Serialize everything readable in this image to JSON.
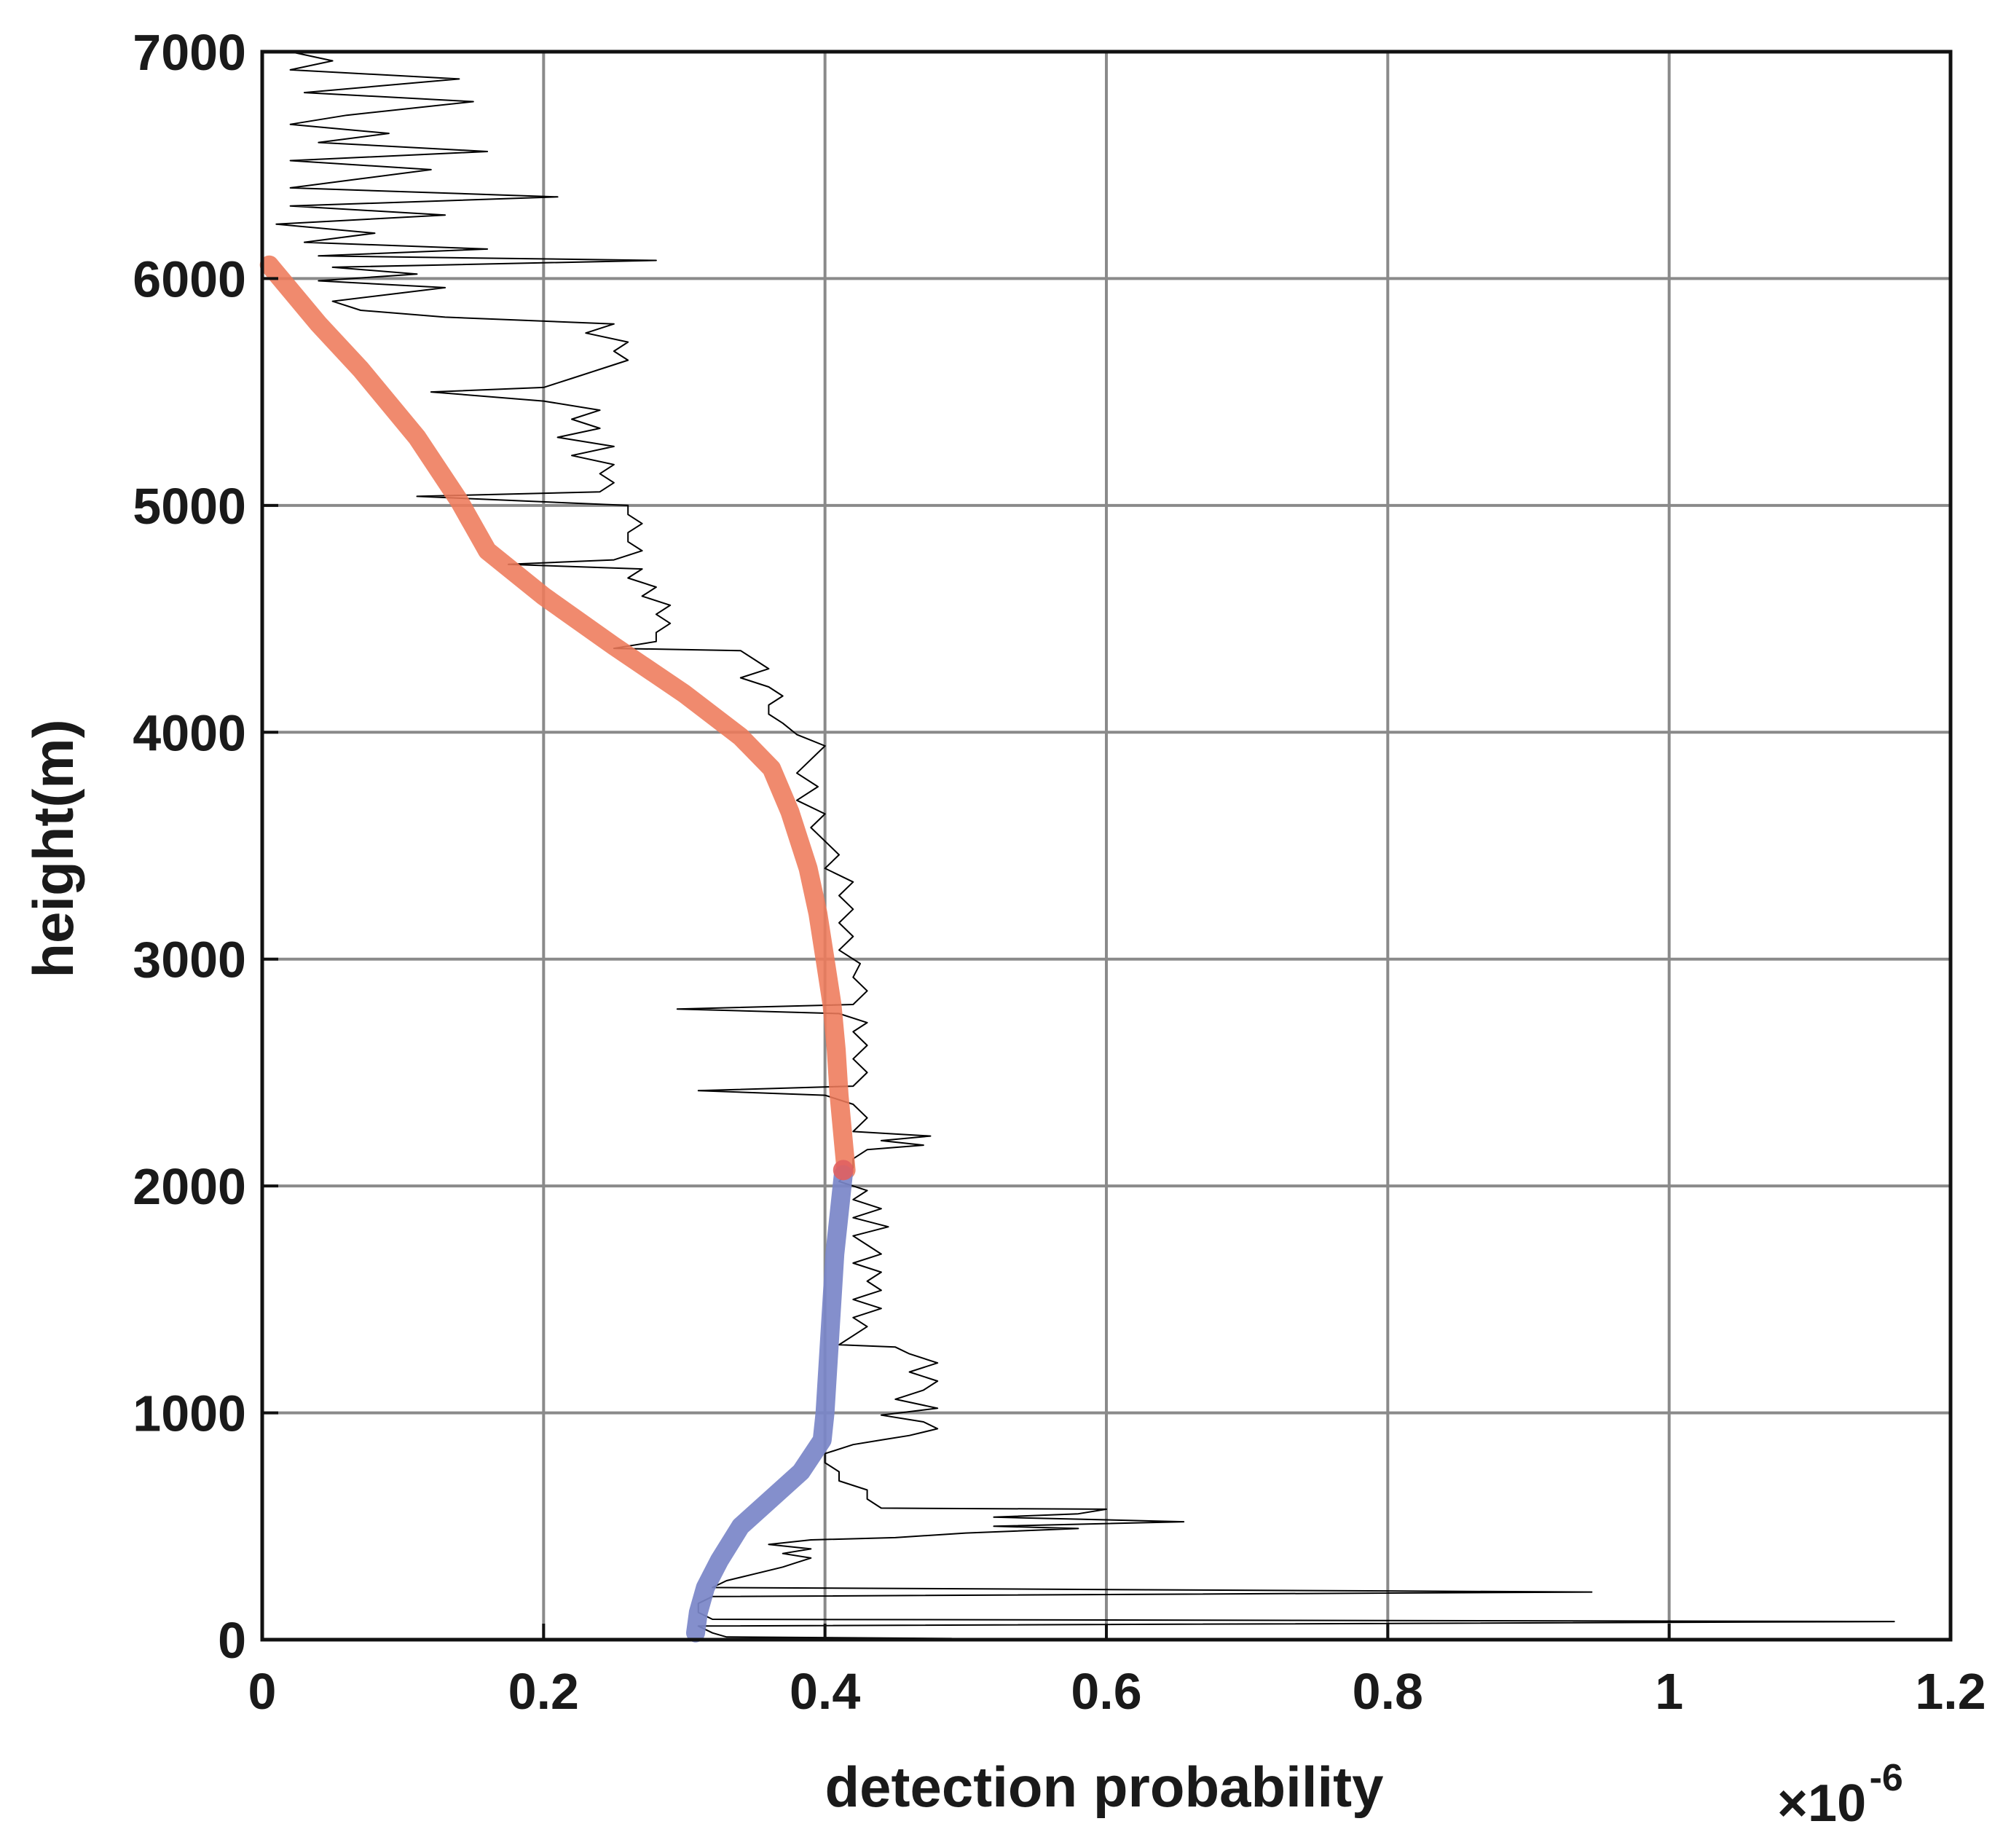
{
  "chart_data": {
    "type": "line",
    "title": "",
    "xlabel": "detection probability",
    "ylabel": "height(m)",
    "x_exponent_label": {
      "times": "×10",
      "power": "-6"
    },
    "xlim": [
      0,
      1.2
    ],
    "ylim": [
      0,
      7000
    ],
    "grid": true,
    "xticks": [
      0,
      0.2,
      0.4,
      0.6,
      0.8,
      1,
      1.2
    ],
    "xtick_labels": [
      "0",
      "0.2",
      "0.4",
      "0.6",
      "0.8",
      "1",
      "1.2"
    ],
    "yticks": [
      0,
      1000,
      2000,
      3000,
      4000,
      5000,
      6000,
      7000
    ],
    "ytick_labels": [
      "0",
      "1000",
      "2000",
      "3000",
      "4000",
      "5000",
      "6000",
      "7000"
    ],
    "series": [
      {
        "color": "#000000",
        "width": 2,
        "opacity": 1,
        "points": [
          [
            0.3,
            0
          ],
          [
            0.49,
            5
          ],
          [
            0.33,
            12
          ],
          [
            0.32,
            30
          ],
          [
            0.31,
            60
          ],
          [
            1.16,
            80
          ],
          [
            0.32,
            90
          ],
          [
            0.31,
            120
          ],
          [
            0.31,
            160
          ],
          [
            0.32,
            190
          ],
          [
            0.945,
            210
          ],
          [
            0.32,
            230
          ],
          [
            0.33,
            260
          ],
          [
            0.35,
            290
          ],
          [
            0.37,
            320
          ],
          [
            0.38,
            340
          ],
          [
            0.39,
            360
          ],
          [
            0.37,
            380
          ],
          [
            0.39,
            400
          ],
          [
            0.36,
            420
          ],
          [
            0.39,
            440
          ],
          [
            0.45,
            450
          ],
          [
            0.5,
            470
          ],
          [
            0.58,
            490
          ],
          [
            0.52,
            500
          ],
          [
            0.655,
            520
          ],
          [
            0.52,
            540
          ],
          [
            0.58,
            555
          ],
          [
            0.6,
            575
          ],
          [
            0.44,
            580
          ],
          [
            0.43,
            620
          ],
          [
            0.43,
            660
          ],
          [
            0.41,
            700
          ],
          [
            0.41,
            740
          ],
          [
            0.4,
            780
          ],
          [
            0.4,
            820
          ],
          [
            0.42,
            860
          ],
          [
            0.44,
            880
          ],
          [
            0.46,
            900
          ],
          [
            0.48,
            930
          ],
          [
            0.47,
            960
          ],
          [
            0.44,
            990
          ],
          [
            0.48,
            1020
          ],
          [
            0.45,
            1060
          ],
          [
            0.47,
            1100
          ],
          [
            0.48,
            1140
          ],
          [
            0.46,
            1180
          ],
          [
            0.48,
            1220
          ],
          [
            0.46,
            1260
          ],
          [
            0.45,
            1290
          ],
          [
            0.41,
            1300
          ],
          [
            0.42,
            1340
          ],
          [
            0.43,
            1380
          ],
          [
            0.42,
            1420
          ],
          [
            0.44,
            1460
          ],
          [
            0.42,
            1500
          ],
          [
            0.44,
            1540
          ],
          [
            0.43,
            1580
          ],
          [
            0.44,
            1620
          ],
          [
            0.42,
            1660
          ],
          [
            0.44,
            1700
          ],
          [
            0.43,
            1740
          ],
          [
            0.42,
            1780
          ],
          [
            0.445,
            1820
          ],
          [
            0.42,
            1860
          ],
          [
            0.44,
            1900
          ],
          [
            0.42,
            1940
          ],
          [
            0.43,
            1980
          ],
          [
            0.41,
            2020
          ],
          [
            0.42,
            2080
          ],
          [
            0.42,
            2120
          ],
          [
            0.43,
            2160
          ],
          [
            0.47,
            2180
          ],
          [
            0.44,
            2200
          ],
          [
            0.475,
            2220
          ],
          [
            0.42,
            2240
          ],
          [
            0.43,
            2300
          ],
          [
            0.42,
            2360
          ],
          [
            0.4,
            2400
          ],
          [
            0.31,
            2420
          ],
          [
            0.42,
            2440
          ],
          [
            0.43,
            2500
          ],
          [
            0.42,
            2560
          ],
          [
            0.43,
            2620
          ],
          [
            0.42,
            2680
          ],
          [
            0.43,
            2720
          ],
          [
            0.41,
            2760
          ],
          [
            0.295,
            2780
          ],
          [
            0.42,
            2800
          ],
          [
            0.43,
            2860
          ],
          [
            0.42,
            2920
          ],
          [
            0.425,
            2980
          ],
          [
            0.41,
            3040
          ],
          [
            0.42,
            3100
          ],
          [
            0.41,
            3160
          ],
          [
            0.42,
            3220
          ],
          [
            0.41,
            3280
          ],
          [
            0.42,
            3340
          ],
          [
            0.4,
            3400
          ],
          [
            0.41,
            3460
          ],
          [
            0.4,
            3520
          ],
          [
            0.39,
            3580
          ],
          [
            0.4,
            3640
          ],
          [
            0.38,
            3700
          ],
          [
            0.395,
            3760
          ],
          [
            0.38,
            3820
          ],
          [
            0.39,
            3880
          ],
          [
            0.4,
            3940
          ],
          [
            0.38,
            3990
          ],
          [
            0.37,
            4040
          ],
          [
            0.36,
            4080
          ],
          [
            0.36,
            4120
          ],
          [
            0.37,
            4160
          ],
          [
            0.36,
            4200
          ],
          [
            0.34,
            4240
          ],
          [
            0.36,
            4280
          ],
          [
            0.35,
            4320
          ],
          [
            0.34,
            4360
          ],
          [
            0.25,
            4370
          ],
          [
            0.28,
            4400
          ],
          [
            0.28,
            4440
          ],
          [
            0.29,
            4480
          ],
          [
            0.28,
            4520
          ],
          [
            0.29,
            4560
          ],
          [
            0.27,
            4600
          ],
          [
            0.28,
            4640
          ],
          [
            0.26,
            4680
          ],
          [
            0.27,
            4720
          ],
          [
            0.175,
            4740
          ],
          [
            0.25,
            4760
          ],
          [
            0.27,
            4800
          ],
          [
            0.26,
            4840
          ],
          [
            0.26,
            4880
          ],
          [
            0.27,
            4920
          ],
          [
            0.26,
            4960
          ],
          [
            0.26,
            5000
          ],
          [
            0.11,
            5040
          ],
          [
            0.24,
            5060
          ],
          [
            0.25,
            5100
          ],
          [
            0.24,
            5140
          ],
          [
            0.25,
            5180
          ],
          [
            0.22,
            5220
          ],
          [
            0.25,
            5260
          ],
          [
            0.21,
            5300
          ],
          [
            0.24,
            5340
          ],
          [
            0.22,
            5380
          ],
          [
            0.24,
            5420
          ],
          [
            0.2,
            5460
          ],
          [
            0.12,
            5500
          ],
          [
            0.2,
            5520
          ],
          [
            0.22,
            5560
          ],
          [
            0.24,
            5600
          ],
          [
            0.26,
            5640
          ],
          [
            0.25,
            5680
          ],
          [
            0.26,
            5720
          ],
          [
            0.23,
            5760
          ],
          [
            0.25,
            5800
          ],
          [
            0.13,
            5830
          ],
          [
            0.07,
            5860
          ],
          [
            0.05,
            5900
          ],
          [
            0.09,
            5930
          ],
          [
            0.13,
            5960
          ],
          [
            0.04,
            5990
          ],
          [
            0.11,
            6020
          ],
          [
            0.05,
            6050
          ],
          [
            0.28,
            6080
          ],
          [
            0.04,
            6100
          ],
          [
            0.16,
            6130
          ],
          [
            0.03,
            6160
          ],
          [
            0.08,
            6200
          ],
          [
            0.01,
            6240
          ],
          [
            0.13,
            6280
          ],
          [
            0.02,
            6320
          ],
          [
            0.21,
            6360
          ],
          [
            0.02,
            6400
          ],
          [
            0.07,
            6440
          ],
          [
            0.12,
            6480
          ],
          [
            0.02,
            6520
          ],
          [
            0.16,
            6560
          ],
          [
            0.04,
            6600
          ],
          [
            0.09,
            6640
          ],
          [
            0.02,
            6680
          ],
          [
            0.06,
            6720
          ],
          [
            0.15,
            6780
          ],
          [
            0.03,
            6820
          ],
          [
            0.14,
            6880
          ],
          [
            0.02,
            6920
          ],
          [
            0.05,
            6960
          ],
          [
            0.02,
            7000
          ]
        ]
      },
      {
        "color": "#ee7a5a",
        "width": 26,
        "opacity": 0.88,
        "points": [
          [
            0.415,
            2070
          ],
          [
            0.413,
            2200
          ],
          [
            0.41,
            2400
          ],
          [
            0.408,
            2600
          ],
          [
            0.405,
            2800
          ],
          [
            0.4,
            3000
          ],
          [
            0.395,
            3200
          ],
          [
            0.388,
            3400
          ],
          [
            0.375,
            3650
          ],
          [
            0.362,
            3840
          ],
          [
            0.34,
            3980
          ],
          [
            0.3,
            4170
          ],
          [
            0.25,
            4380
          ],
          [
            0.2,
            4600
          ],
          [
            0.16,
            4800
          ],
          [
            0.14,
            5020
          ],
          [
            0.11,
            5300
          ],
          [
            0.07,
            5600
          ],
          [
            0.04,
            5800
          ],
          [
            0.005,
            6060
          ]
        ]
      },
      {
        "color": "#7a85c8",
        "width": 26,
        "opacity": 0.92,
        "points": [
          [
            0.308,
            30
          ],
          [
            0.31,
            120
          ],
          [
            0.315,
            230
          ],
          [
            0.325,
            350
          ],
          [
            0.34,
            500
          ],
          [
            0.358,
            600
          ],
          [
            0.383,
            740
          ],
          [
            0.398,
            880
          ],
          [
            0.4,
            1000
          ],
          [
            0.403,
            1300
          ],
          [
            0.407,
            1700
          ],
          [
            0.413,
            2050
          ]
        ]
      }
    ],
    "markers": [
      {
        "x": 0.413,
        "y": 2070,
        "color": "#e06060"
      }
    ]
  }
}
